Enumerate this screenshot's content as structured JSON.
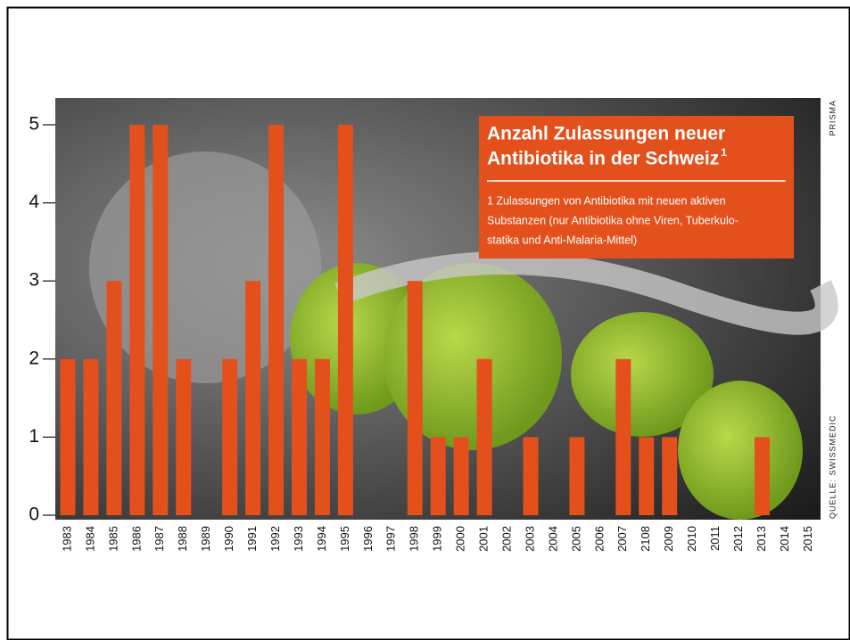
{
  "chart_data": {
    "type": "bar",
    "title": [
      "Anzahl Zulassungen neuer",
      "Antibiotika in der Schweiz"
    ],
    "title_note": "1",
    "note": [
      "1 Zulassungen von Antibiotika mit neuen aktiven",
      "Substanzen (nur Antibiotika ohne Viren, Tuberkulo-",
      "statika und Anti-Malaria-Mittel)"
    ],
    "credit": "PRISMA",
    "source": "QUELLE: SWISSMEDIC",
    "categories": [
      "1983",
      "1984",
      "1985",
      "1986",
      "1987",
      "1988",
      "1989",
      "1990",
      "1991",
      "1992",
      "1993",
      "1994",
      "1995",
      "1996",
      "1997",
      "1998",
      "1999",
      "2000",
      "2001",
      "2002",
      "2003",
      "2004",
      "2005",
      "2006",
      "2007",
      "2108",
      "2009",
      "2010",
      "2011",
      "2012",
      "2013",
      "2014",
      "2015"
    ],
    "values": [
      2,
      2,
      3,
      5,
      5,
      2,
      0,
      2,
      3,
      5,
      2,
      2,
      5,
      0,
      0,
      3,
      1,
      1,
      2,
      0,
      1,
      0,
      1,
      0,
      2,
      1,
      1,
      0,
      0,
      0,
      1,
      0,
      0
    ],
    "color": "#e4501b",
    "ylim": [
      0,
      5
    ],
    "yticks": [
      0,
      1,
      2,
      3,
      4,
      5
    ]
  }
}
